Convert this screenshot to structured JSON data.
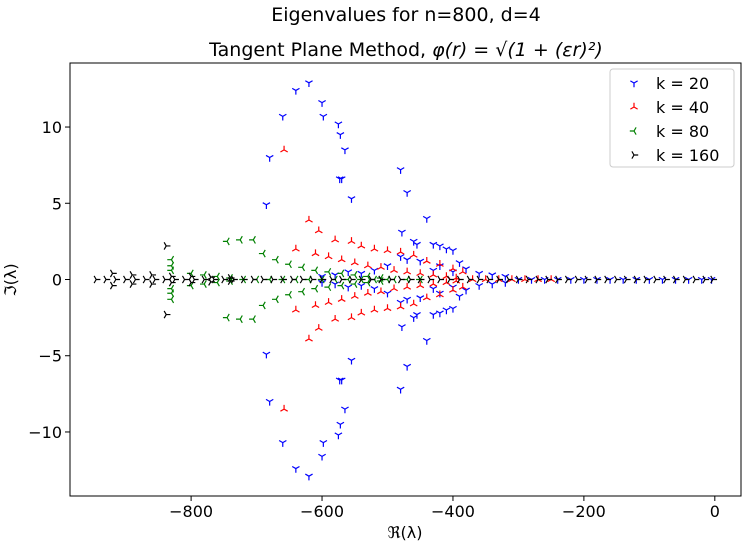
{
  "chart_data": {
    "type": "scatter",
    "title_line1": "Eigenvalues for n=800, d=4",
    "title_line2_prefix": "Tangent Plane Method, ",
    "title_line2_formula": "φ(r) = √(1 + (εr)²)",
    "xlabel": "ℜ(λ)",
    "ylabel": "ℑ(λ)",
    "xlim": [
      -985,
      40
    ],
    "ylim": [
      -14.2,
      14.2
    ],
    "xticks": [
      -800,
      -600,
      -400,
      -200,
      0
    ],
    "xtick_labels": [
      "−800",
      "−600",
      "−400",
      "−200",
      "0"
    ],
    "yticks": [
      -10,
      -5,
      0,
      5,
      10
    ],
    "ytick_labels": [
      "−10",
      "−5",
      "0",
      "5",
      "10"
    ],
    "grid": false,
    "legend_position": "top-right",
    "series": [
      {
        "name": "k = 20",
        "color": "#0000ff",
        "marker": "tri-down",
        "points": [
          [
            -620,
            12.9
          ],
          [
            -640,
            12.4
          ],
          [
            -600,
            11.6
          ],
          [
            -660,
            10.7
          ],
          [
            -598,
            10.7
          ],
          [
            -575,
            10.2
          ],
          [
            -572,
            9.5
          ],
          [
            -565,
            8.5
          ],
          [
            -680,
            8.0
          ],
          [
            -573,
            6.6
          ],
          [
            -570,
            6.6
          ],
          [
            -555,
            5.3
          ],
          [
            -685,
            4.9
          ],
          [
            -480,
            7.2
          ],
          [
            -470,
            5.7
          ],
          [
            -440,
            4.0
          ],
          [
            -478,
            3.1
          ],
          [
            -460,
            2.5
          ],
          [
            -455,
            2.3
          ],
          [
            -430,
            2.3
          ],
          [
            -420,
            2.2
          ],
          [
            -410,
            2.0
          ],
          [
            -400,
            1.9
          ],
          [
            -480,
            1.5
          ],
          [
            -470,
            1.3
          ],
          [
            -450,
            1.2
          ],
          [
            -390,
            1.1
          ],
          [
            -420,
            0.9
          ],
          [
            -380,
            0.7
          ],
          [
            -430,
            0.6
          ],
          [
            -400,
            0.5
          ],
          [
            -360,
            0.4
          ],
          [
            -340,
            0.3
          ],
          [
            -320,
            0.2
          ],
          [
            -520,
            0.6
          ],
          [
            -500,
            0.9
          ],
          [
            -560,
            0.5
          ],
          [
            -540,
            0.4
          ],
          [
            -580,
            0.3
          ],
          [
            -600,
            0.2
          ],
          [
            -300,
            0.0
          ],
          [
            -280,
            0.0
          ],
          [
            -260,
            0.0
          ],
          [
            -240,
            0.0
          ],
          [
            -220,
            0.0
          ],
          [
            -200,
            0.0
          ],
          [
            -180,
            0.0
          ],
          [
            -160,
            0.0
          ],
          [
            -140,
            0.0
          ],
          [
            -120,
            0.0
          ],
          [
            -100,
            0.0
          ],
          [
            -80,
            0.0
          ],
          [
            -60,
            0.0
          ],
          [
            -40,
            0.0
          ],
          [
            -20,
            0.0
          ],
          [
            -5,
            0.0
          ],
          [
            -620,
            -12.9
          ],
          [
            -640,
            -12.4
          ],
          [
            -600,
            -11.6
          ],
          [
            -660,
            -10.7
          ],
          [
            -598,
            -10.7
          ],
          [
            -575,
            -10.2
          ],
          [
            -572,
            -9.5
          ],
          [
            -565,
            -8.5
          ],
          [
            -680,
            -8.0
          ],
          [
            -573,
            -6.6
          ],
          [
            -570,
            -6.6
          ],
          [
            -555,
            -5.3
          ],
          [
            -685,
            -4.9
          ],
          [
            -480,
            -7.2
          ],
          [
            -470,
            -5.7
          ],
          [
            -440,
            -4.0
          ],
          [
            -478,
            -3.1
          ],
          [
            -460,
            -2.5
          ],
          [
            -455,
            -2.3
          ],
          [
            -430,
            -2.3
          ],
          [
            -420,
            -2.2
          ],
          [
            -410,
            -2.0
          ],
          [
            -400,
            -1.9
          ],
          [
            -480,
            -1.5
          ],
          [
            -470,
            -1.3
          ],
          [
            -450,
            -1.2
          ],
          [
            -390,
            -1.1
          ],
          [
            -420,
            -0.9
          ],
          [
            -380,
            -0.7
          ],
          [
            -430,
            -0.6
          ],
          [
            -400,
            -0.5
          ],
          [
            -360,
            -0.4
          ],
          [
            -340,
            -0.3
          ],
          [
            -320,
            -0.2
          ],
          [
            -520,
            -0.6
          ],
          [
            -500,
            -0.9
          ],
          [
            -560,
            -0.5
          ],
          [
            -540,
            -0.4
          ],
          [
            -580,
            -0.3
          ],
          [
            -600,
            -0.2
          ]
        ]
      },
      {
        "name": "k = 40",
        "color": "#ff0000",
        "marker": "tri-up",
        "points": [
          [
            -658,
            8.5
          ],
          [
            -620,
            3.9
          ],
          [
            -605,
            3.2
          ],
          [
            -580,
            2.6
          ],
          [
            -555,
            2.5
          ],
          [
            -540,
            2.2
          ],
          [
            -520,
            2.0
          ],
          [
            -500,
            1.9
          ],
          [
            -480,
            1.8
          ],
          [
            -460,
            1.6
          ],
          [
            -440,
            1.2
          ],
          [
            -420,
            1.0
          ],
          [
            -400,
            0.7
          ],
          [
            -385,
            0.5
          ],
          [
            -640,
            2.0
          ],
          [
            -610,
            1.7
          ],
          [
            -590,
            1.5
          ],
          [
            -570,
            1.3
          ],
          [
            -550,
            1.1
          ],
          [
            -530,
            0.9
          ],
          [
            -510,
            0.8
          ],
          [
            -490,
            0.6
          ],
          [
            -470,
            0.5
          ],
          [
            -450,
            0.4
          ],
          [
            -430,
            0.3
          ],
          [
            -410,
            0.2
          ],
          [
            -395,
            0.1
          ],
          [
            -370,
            0.0
          ],
          [
            -350,
            0.0
          ],
          [
            -330,
            0.0
          ],
          [
            -310,
            0.0
          ],
          [
            -290,
            0.0
          ],
          [
            -270,
            0.0
          ],
          [
            -250,
            0.0
          ],
          [
            -658,
            -8.5
          ],
          [
            -620,
            -3.9
          ],
          [
            -605,
            -3.2
          ],
          [
            -580,
            -2.6
          ],
          [
            -555,
            -2.5
          ],
          [
            -540,
            -2.2
          ],
          [
            -520,
            -2.0
          ],
          [
            -500,
            -1.9
          ],
          [
            -480,
            -1.8
          ],
          [
            -460,
            -1.6
          ],
          [
            -440,
            -1.2
          ],
          [
            -420,
            -1.0
          ],
          [
            -400,
            -0.7
          ],
          [
            -385,
            -0.5
          ],
          [
            -640,
            -2.0
          ],
          [
            -610,
            -1.7
          ],
          [
            -590,
            -1.5
          ],
          [
            -570,
            -1.3
          ],
          [
            -550,
            -1.1
          ],
          [
            -530,
            -0.9
          ],
          [
            -510,
            -0.8
          ],
          [
            -490,
            -0.6
          ],
          [
            -470,
            -0.5
          ],
          [
            -450,
            -0.4
          ],
          [
            -430,
            -0.3
          ],
          [
            -410,
            -0.2
          ],
          [
            -395,
            -0.1
          ]
        ]
      },
      {
        "name": "k = 80",
        "color": "#008000",
        "marker": "tri-left",
        "points": [
          [
            -745,
            2.5
          ],
          [
            -725,
            2.6
          ],
          [
            -705,
            2.6
          ],
          [
            -690,
            1.7
          ],
          [
            -670,
            1.3
          ],
          [
            -650,
            1.0
          ],
          [
            -630,
            0.8
          ],
          [
            -610,
            0.6
          ],
          [
            -590,
            0.5
          ],
          [
            -570,
            0.4
          ],
          [
            -550,
            0.3
          ],
          [
            -530,
            0.2
          ],
          [
            -510,
            0.1
          ],
          [
            -490,
            0.0
          ],
          [
            -470,
            0.0
          ],
          [
            -450,
            0.0
          ],
          [
            -830,
            1.3
          ],
          [
            -830,
            0.9
          ],
          [
            -830,
            0.6
          ],
          [
            -800,
            0.4
          ],
          [
            -780,
            0.3
          ],
          [
            -760,
            0.2
          ],
          [
            -740,
            0.1
          ],
          [
            -720,
            0.0
          ],
          [
            -700,
            0.0
          ],
          [
            -680,
            0.0
          ],
          [
            -660,
            0.0
          ],
          [
            -640,
            0.0
          ],
          [
            -620,
            0.0
          ],
          [
            -600,
            0.0
          ],
          [
            -580,
            0.0
          ],
          [
            -560,
            0.0
          ],
          [
            -540,
            0.0
          ],
          [
            -520,
            0.0
          ],
          [
            -500,
            0.0
          ],
          [
            -745,
            -2.5
          ],
          [
            -725,
            -2.6
          ],
          [
            -705,
            -2.6
          ],
          [
            -690,
            -1.7
          ],
          [
            -670,
            -1.3
          ],
          [
            -650,
            -1.0
          ],
          [
            -630,
            -0.8
          ],
          [
            -610,
            -0.6
          ],
          [
            -590,
            -0.5
          ],
          [
            -570,
            -0.4
          ],
          [
            -550,
            -0.3
          ],
          [
            -530,
            -0.2
          ],
          [
            -510,
            -0.1
          ],
          [
            -830,
            -1.3
          ],
          [
            -830,
            -0.9
          ],
          [
            -830,
            -0.6
          ],
          [
            -800,
            -0.4
          ],
          [
            -780,
            -0.3
          ],
          [
            -760,
            -0.2
          ],
          [
            -740,
            -0.1
          ]
        ]
      },
      {
        "name": "k = 160",
        "color": "#000000",
        "marker": "tri-right",
        "points": [
          [
            -838,
            2.2
          ],
          [
            -838,
            -2.3
          ],
          [
            -945,
            0.0
          ],
          [
            -930,
            0.0
          ],
          [
            -915,
            0.0
          ],
          [
            -900,
            0.0
          ],
          [
            -885,
            0.0
          ],
          [
            -870,
            0.0
          ],
          [
            -855,
            0.0
          ],
          [
            -840,
            0.0
          ],
          [
            -825,
            0.0
          ],
          [
            -810,
            0.0
          ],
          [
            -795,
            0.0
          ],
          [
            -780,
            0.0
          ],
          [
            -765,
            0.0
          ],
          [
            -750,
            0.0
          ],
          [
            -735,
            0.0
          ],
          [
            -720,
            0.0
          ],
          [
            -705,
            0.0
          ],
          [
            -690,
            0.0
          ],
          [
            -675,
            0.0
          ],
          [
            -660,
            0.0
          ],
          [
            -645,
            0.0
          ],
          [
            -630,
            0.0
          ],
          [
            -615,
            0.0
          ],
          [
            -600,
            0.0
          ],
          [
            -585,
            0.0
          ],
          [
            -570,
            0.0
          ],
          [
            -555,
            0.0
          ],
          [
            -540,
            0.0
          ],
          [
            -525,
            0.0
          ],
          [
            -510,
            0.0
          ],
          [
            -495,
            0.0
          ],
          [
            -480,
            0.0
          ],
          [
            -465,
            0.0
          ],
          [
            -450,
            0.0
          ],
          [
            -435,
            0.0
          ],
          [
            -420,
            0.0
          ],
          [
            -405,
            0.0
          ],
          [
            -390,
            0.0
          ],
          [
            -375,
            0.0
          ],
          [
            -360,
            0.0
          ],
          [
            -345,
            0.0
          ],
          [
            -330,
            0.0
          ],
          [
            -315,
            0.0
          ],
          [
            -300,
            0.0
          ],
          [
            -285,
            0.0
          ],
          [
            -270,
            0.0
          ],
          [
            -255,
            0.0
          ],
          [
            -240,
            0.0
          ],
          [
            -225,
            0.0
          ],
          [
            -210,
            0.0
          ],
          [
            -195,
            0.0
          ],
          [
            -180,
            0.0
          ],
          [
            -165,
            0.0
          ],
          [
            -150,
            0.0
          ],
          [
            -135,
            0.0
          ],
          [
            -120,
            0.0
          ],
          [
            -105,
            0.0
          ],
          [
            -90,
            0.0
          ],
          [
            -75,
            0.0
          ],
          [
            -60,
            0.0
          ],
          [
            -45,
            0.0
          ],
          [
            -30,
            0.0
          ],
          [
            -15,
            0.0
          ],
          [
            -3,
            0.0
          ],
          [
            -920,
            0.4
          ],
          [
            -890,
            0.3
          ],
          [
            -860,
            0.3
          ],
          [
            -830,
            0.2
          ],
          [
            -800,
            0.2
          ],
          [
            -770,
            0.15
          ],
          [
            -740,
            0.1
          ],
          [
            -920,
            -0.4
          ],
          [
            -890,
            -0.3
          ],
          [
            -860,
            -0.3
          ],
          [
            -830,
            -0.2
          ],
          [
            -800,
            -0.2
          ],
          [
            -770,
            -0.15
          ],
          [
            -740,
            -0.1
          ]
        ]
      }
    ]
  }
}
